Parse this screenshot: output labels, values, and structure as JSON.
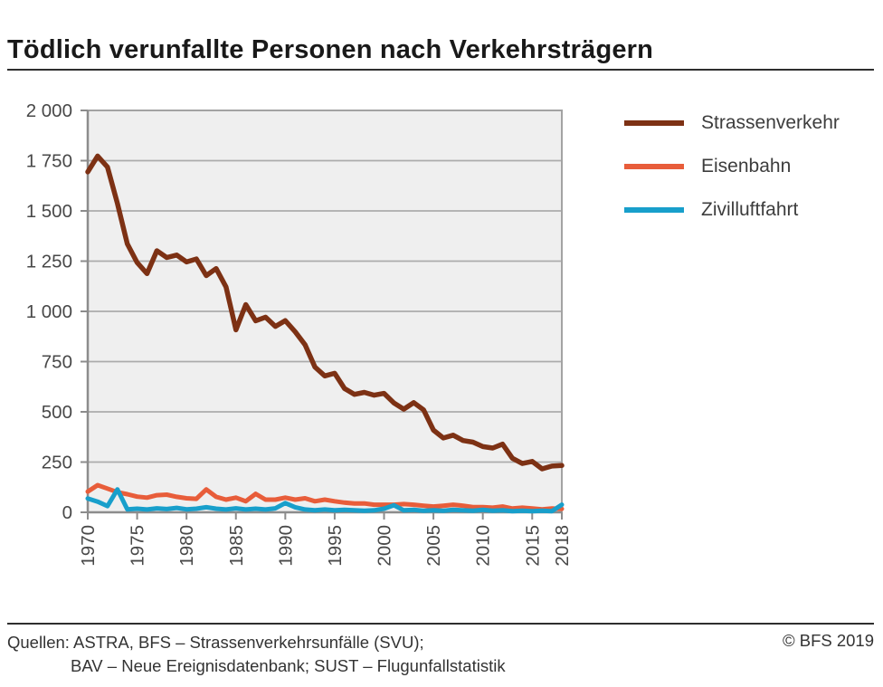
{
  "chart_data": {
    "type": "line",
    "title": "Tödlich verunfallte Personen nach Verkehrsträgern",
    "xlabel": "",
    "ylabel": "",
    "grid": true,
    "legend_position": "outside-top-right",
    "plot_bg": "#efefef",
    "grid_color": "#ababab",
    "axis_color": "#8c8c8c",
    "tick_label_color": "#484848",
    "ylim": [
      0,
      2000
    ],
    "ytick_interval": 250,
    "ytick_labels": [
      "0",
      "250",
      "500",
      "750",
      "1 000",
      "1 250",
      "1 500",
      "1 750",
      "2 000"
    ],
    "xtick_years": [
      1970,
      1975,
      1980,
      1985,
      1990,
      1995,
      2000,
      2005,
      2010,
      2015,
      2018
    ],
    "x": [
      1970,
      1971,
      1972,
      1973,
      1974,
      1975,
      1976,
      1977,
      1978,
      1979,
      1980,
      1981,
      1982,
      1983,
      1984,
      1985,
      1986,
      1987,
      1988,
      1989,
      1990,
      1991,
      1992,
      1993,
      1994,
      1995,
      1996,
      1997,
      1998,
      1999,
      2000,
      2001,
      2002,
      2003,
      2004,
      2005,
      2006,
      2007,
      2008,
      2009,
      2010,
      2011,
      2012,
      2013,
      2014,
      2015,
      2016,
      2017,
      2018
    ],
    "series": [
      {
        "name": "Strassenverkehr",
        "color": "#7d3114",
        "values": [
          1694,
          1773,
          1718,
          1537,
          1336,
          1243,
          1188,
          1302,
          1268,
          1280,
          1246,
          1261,
          1178,
          1213,
          1122,
          908,
          1034,
          953,
          971,
          925,
          954,
          898,
          834,
          723,
          679,
          692,
          616,
          587,
          597,
          583,
          592,
          544,
          513,
          546,
          510,
          409,
          370,
          384,
          357,
          349,
          327,
          320,
          339,
          269,
          243,
          253,
          216,
          230,
          233
        ]
      },
      {
        "name": "Eisenbahn",
        "color": "#e85d3a",
        "values": [
          103,
          135,
          118,
          100,
          90,
          78,
          73,
          85,
          88,
          77,
          70,
          67,
          114,
          77,
          63,
          73,
          55,
          92,
          63,
          63,
          73,
          63,
          70,
          55,
          63,
          55,
          48,
          44,
          44,
          38,
          38,
          38,
          41,
          38,
          33,
          29,
          33,
          38,
          33,
          26,
          26,
          23,
          29,
          19,
          23,
          19,
          15,
          19,
          17
        ]
      },
      {
        "name": "Zivilluftfahrt",
        "color": "#189fcb",
        "values": [
          69,
          53,
          31,
          114,
          15,
          18,
          14,
          20,
          16,
          22,
          15,
          18,
          25,
          18,
          14,
          20,
          14,
          18,
          14,
          20,
          46,
          25,
          14,
          10,
          14,
          10,
          12,
          10,
          8,
          10,
          18,
          35,
          10,
          12,
          8,
          10,
          8,
          12,
          10,
          8,
          12,
          8,
          10,
          6,
          8,
          6,
          8,
          6,
          38
        ]
      }
    ]
  },
  "footer": {
    "sources_label": "Quellen:",
    "sources_line1": "ASTRA, BFS – Strassenverkehrsunfälle (SVU);",
    "sources_line2": "BAV – Neue Ereignisdatenbank; SUST – Flugunfallstatistik",
    "copyright": "© BFS 2019"
  }
}
